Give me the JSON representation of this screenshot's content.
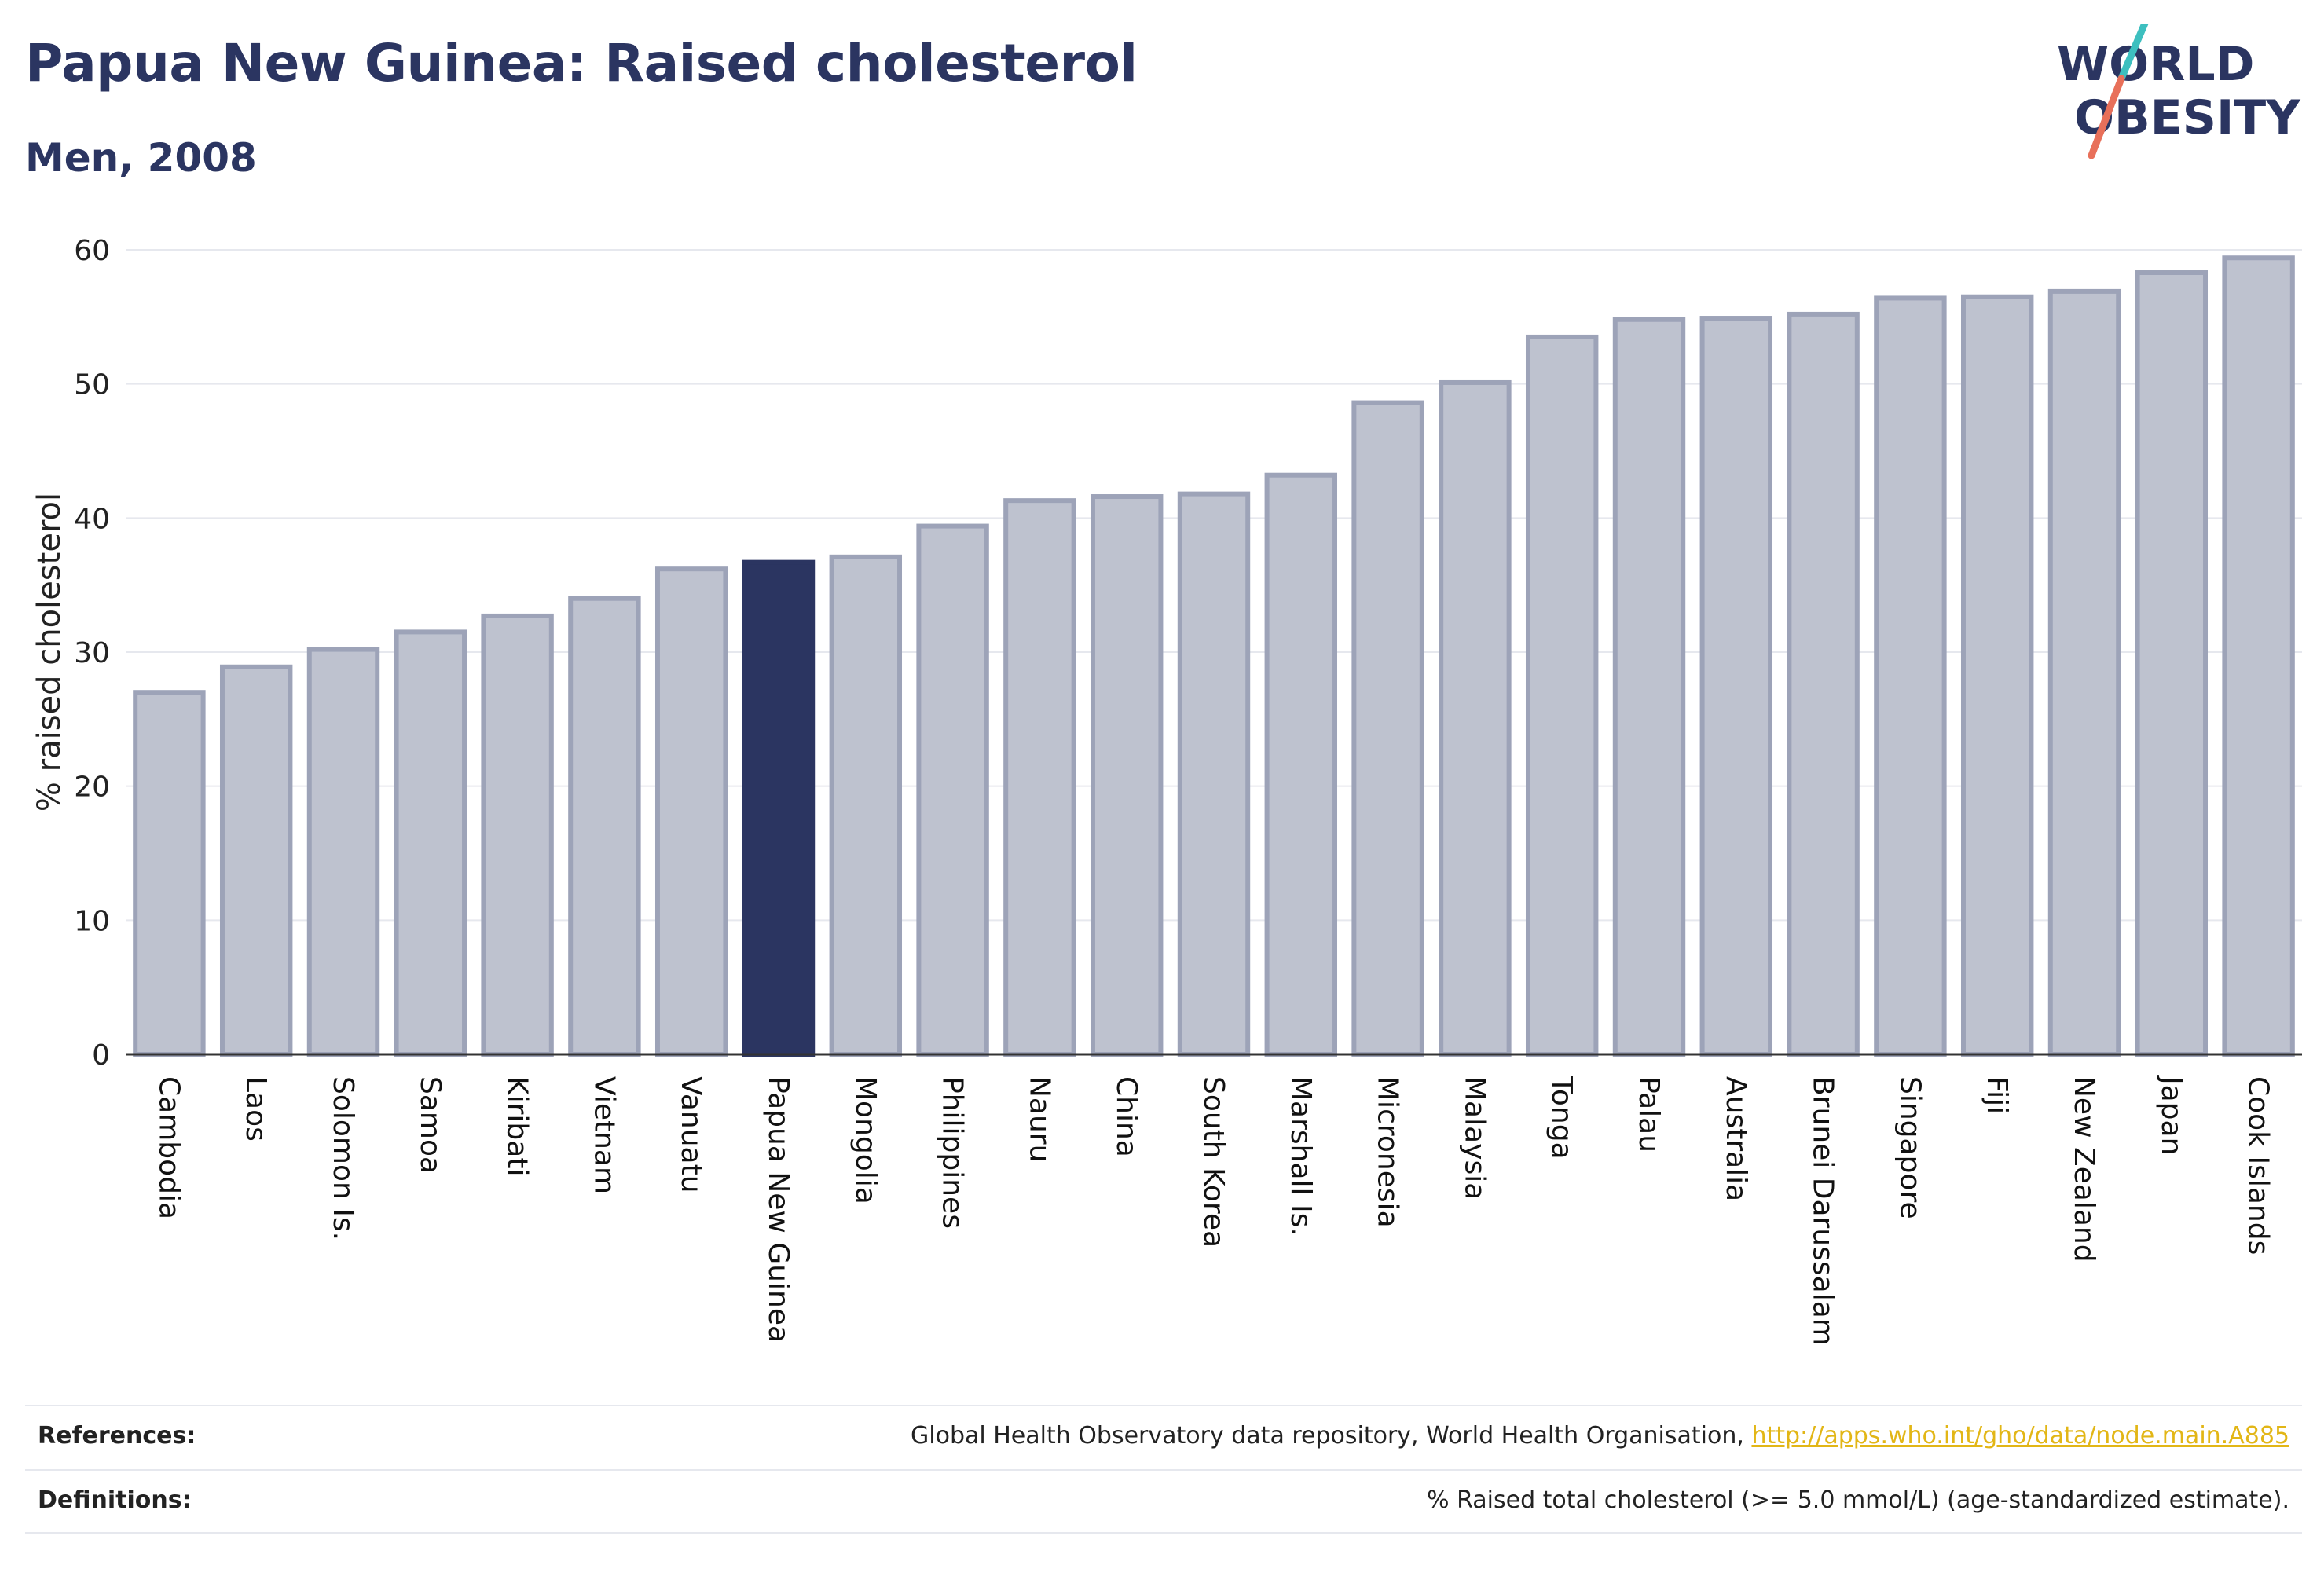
{
  "header": {
    "title": "Papua New Guinea: Raised cholesterol",
    "subtitle": "Men, 2008"
  },
  "logo": {
    "line1": "WORLD",
    "line2": "OBESITY",
    "colors": {
      "text": "#2b3561",
      "slash_top": "#3dbfbf",
      "slash_bottom": "#e8705a"
    }
  },
  "chart_data": {
    "type": "bar",
    "ylabel": "% raised cholesterol",
    "xlabel": "",
    "ylim": [
      0,
      60
    ],
    "yticks": [
      0,
      10,
      20,
      30,
      40,
      50,
      60
    ],
    "grid": true,
    "highlight": "Papua New Guinea",
    "colors": {
      "bar": "#bec2cf",
      "bar_edge": "#9da3b8",
      "highlight": "#2b3561",
      "grid": "#e6e8ee",
      "axis": "#333333"
    },
    "categories": [
      "Cambodia",
      "Laos",
      "Solomon Is.",
      "Samoa",
      "Kiribati",
      "Vietnam",
      "Vanuatu",
      "Papua New Guinea",
      "Mongolia",
      "Philippines",
      "Nauru",
      "China",
      "South Korea",
      "Marshall Is.",
      "Micronesia",
      "Malaysia",
      "Tonga",
      "Palau",
      "Australia",
      "Brunei Darussalam",
      "Singapore",
      "Fiji",
      "New Zealand",
      "Japan",
      "Cook Islands"
    ],
    "values": [
      27.0,
      28.9,
      30.2,
      31.5,
      32.7,
      34.0,
      36.2,
      36.7,
      37.1,
      39.4,
      41.3,
      41.6,
      41.8,
      43.2,
      48.6,
      50.1,
      53.5,
      54.8,
      54.9,
      55.2,
      56.4,
      56.5,
      56.9,
      58.3,
      59.4
    ]
  },
  "footer": {
    "references_label": "References:",
    "references_text": "Global Health Observatory data repository, World Health Organisation, ",
    "references_link": "http://apps.who.int/gho/data/node.main.A885",
    "definitions_label": "Definitions:",
    "definitions_text": "% Raised total cholesterol (>= 5.0 mmol/L) (age-standardized estimate)."
  }
}
